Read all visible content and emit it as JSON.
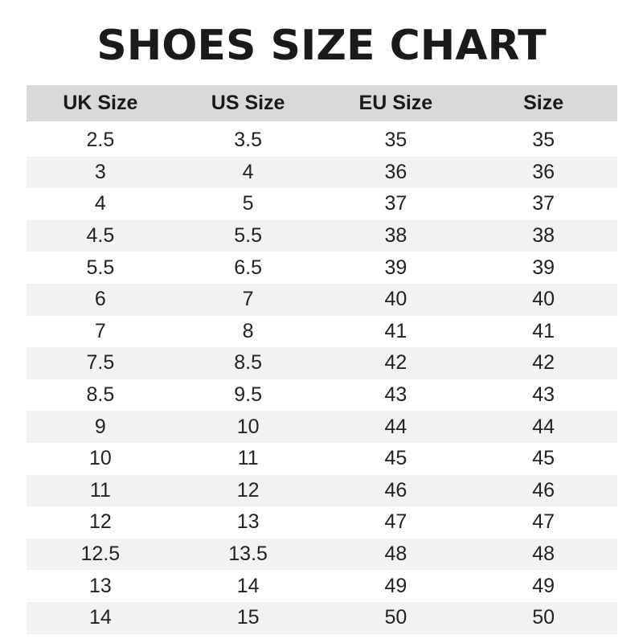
{
  "title": "SHOES SIZE CHART",
  "chart_data": {
    "type": "table",
    "title": "SHOES SIZE CHART",
    "columns": [
      "UK Size",
      "US Size",
      "EU Size",
      "Size"
    ],
    "rows": [
      [
        "2.5",
        "3.5",
        "35",
        "35"
      ],
      [
        "3",
        "4",
        "36",
        "36"
      ],
      [
        "4",
        "5",
        "37",
        "37"
      ],
      [
        "4.5",
        "5.5",
        "38",
        "38"
      ],
      [
        "5.5",
        "6.5",
        "39",
        "39"
      ],
      [
        "6",
        "7",
        "40",
        "40"
      ],
      [
        "7",
        "8",
        "41",
        "41"
      ],
      [
        "7.5",
        "8.5",
        "42",
        "42"
      ],
      [
        "8.5",
        "9.5",
        "43",
        "43"
      ],
      [
        "9",
        "10",
        "44",
        "44"
      ],
      [
        "10",
        "11",
        "45",
        "45"
      ],
      [
        "11",
        "12",
        "46",
        "46"
      ],
      [
        "12",
        "13",
        "47",
        "47"
      ],
      [
        "12.5",
        "13.5",
        "48",
        "48"
      ],
      [
        "13",
        "14",
        "49",
        "49"
      ],
      [
        "14",
        "15",
        "50",
        "50"
      ]
    ],
    "colors": {
      "header_bg": "#d9d9d9",
      "stripe_bg": "#f2f2f2",
      "text": "#1a1a1a"
    }
  }
}
